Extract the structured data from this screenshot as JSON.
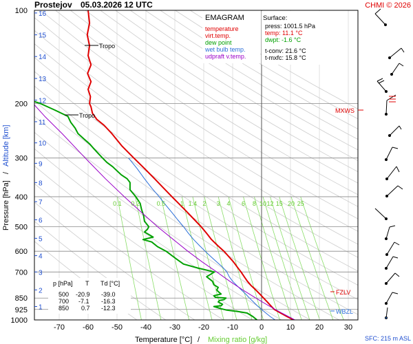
{
  "header": {
    "station": "Prostejov",
    "datetime": "05.03.2026 12 UTC",
    "copyright": "CHMI © 2026"
  },
  "legend": {
    "title": "EMAGRAM",
    "items": [
      {
        "label": "temperature",
        "color": "#e00000"
      },
      {
        "label": "virt.temp.",
        "color": "#e00000"
      },
      {
        "label": "dew point",
        "color": "#00a000"
      },
      {
        "label": "wet bulb temp.",
        "color": "#2a6ed8"
      },
      {
        "label": "udpraft v.temp.",
        "color": "#9a00c8"
      }
    ]
  },
  "surface": {
    "title": "Surface:",
    "press": "press: 1001.5 hPa",
    "temp": "temp: 11.1 °C",
    "dwpt": "dwpt: -1.6 °C",
    "tconv": "t-conv: 21.6 °C",
    "tmxfc": "t-mxfc: 15.8 °C"
  },
  "table": {
    "headers": [
      "p [hPa]",
      "T",
      "Td [°C]"
    ],
    "rows": [
      [
        "500",
        "-20.9",
        "-39.0"
      ],
      [
        "700",
        "-7.1",
        "-16.3"
      ],
      [
        "850",
        "0.7",
        "-12.3"
      ]
    ]
  },
  "labels": {
    "tropo": "Tropo",
    "mxws": "MXWS",
    "fzlv": "FZLV",
    "wbzl": "WBZL",
    "sfc": "SFC: 215 m ASL",
    "xlabel_temp": "Temperature [°C]",
    "xlabel_sep": "/",
    "xlabel_mix": "Mixing ratio [g/kg]",
    "ylabel_press": "Pressure [hPa]",
    "ylabel_sep": "/",
    "ylabel_alt": "Altitude [km]"
  },
  "colors": {
    "temperature": "#e00000",
    "dewpoint": "#00a000",
    "wetbulb": "#2a6ed8",
    "parcel": "#9a00c8",
    "mixing": "#88dd66",
    "dry_adiabat": "#cccccc",
    "altitude": "#1f4fd0",
    "mixlabel": "#66cc33"
  },
  "chart_data": {
    "type": "line",
    "ylim": [
      1000,
      100
    ],
    "xlim": [
      -80,
      30
    ],
    "pressure_ticks": [
      100,
      200,
      300,
      400,
      500,
      600,
      700,
      850,
      925,
      1000
    ],
    "temp_ticks": [
      -70,
      -60,
      -50,
      -40,
      -30,
      -20,
      -10,
      0,
      10,
      20,
      30
    ],
    "altitude_ticks": [
      {
        "km": "1",
        "p": 905
      },
      {
        "km": "2",
        "p": 800
      },
      {
        "km": "3",
        "p": 700
      },
      {
        "km": "4",
        "p": 620
      },
      {
        "km": "5",
        "p": 545
      },
      {
        "km": "6",
        "p": 475
      },
      {
        "km": "7",
        "p": 415
      },
      {
        "km": "8",
        "p": 360
      },
      {
        "km": "9",
        "p": 312
      },
      {
        "km": "10",
        "p": 268
      },
      {
        "km": "11",
        "p": 229
      },
      {
        "km": "12",
        "p": 195
      },
      {
        "km": "13",
        "p": 166
      },
      {
        "km": "14",
        "p": 141
      },
      {
        "km": "15",
        "p": 120
      },
      {
        "km": "16",
        "p": 102
      }
    ],
    "mixing_ratio_labels": [
      "0.1",
      "0.2",
      "0.5",
      "1",
      "1.4",
      "2",
      "3",
      "4",
      "6",
      "8",
      "10",
      "12",
      "15",
      "20",
      "25"
    ],
    "series": [
      {
        "name": "temperature",
        "points": [
          [
            1000,
            11.1
          ],
          [
            975,
            8.8
          ],
          [
            950,
            6.6
          ],
          [
            925,
            4.4
          ],
          [
            900,
            3.2
          ],
          [
            875,
            2.0
          ],
          [
            850,
            0.7
          ],
          [
            825,
            -0.6
          ],
          [
            800,
            -2.0
          ],
          [
            775,
            -3.6
          ],
          [
            750,
            -4.9
          ],
          [
            725,
            -6.0
          ],
          [
            700,
            -7.1
          ],
          [
            675,
            -8.4
          ],
          [
            650,
            -9.7
          ],
          [
            625,
            -11.3
          ],
          [
            600,
            -13.0
          ],
          [
            575,
            -15.2
          ],
          [
            550,
            -17.3
          ],
          [
            525,
            -19.0
          ],
          [
            500,
            -20.9
          ],
          [
            475,
            -23.2
          ],
          [
            450,
            -25.6
          ],
          [
            425,
            -28.2
          ],
          [
            400,
            -31.0
          ],
          [
            375,
            -33.9
          ],
          [
            350,
            -37.0
          ],
          [
            325,
            -40.4
          ],
          [
            300,
            -44.2
          ],
          [
            275,
            -48.2
          ],
          [
            250,
            -51.8
          ],
          [
            235,
            -54.5
          ],
          [
            225,
            -57.0
          ],
          [
            215,
            -58.5
          ],
          [
            205,
            -59.0
          ],
          [
            200,
            -59.5
          ],
          [
            190,
            -59.2
          ],
          [
            180,
            -60.0
          ],
          [
            170,
            -59.0
          ],
          [
            160,
            -60.2
          ],
          [
            150,
            -59.0
          ],
          [
            140,
            -60.0
          ],
          [
            130,
            -59.5
          ],
          [
            120,
            -60.3
          ],
          [
            110,
            -59.5
          ],
          [
            100,
            -60.0
          ]
        ]
      },
      {
        "name": "dew point",
        "points": [
          [
            1000,
            -1.6
          ],
          [
            975,
            -3.0
          ],
          [
            950,
            -5.0
          ],
          [
            940,
            -8.0
          ],
          [
            930,
            -12.0
          ],
          [
            920,
            -14.0
          ],
          [
            905,
            -16.5
          ],
          [
            900,
            -14.0
          ],
          [
            890,
            -13.5
          ],
          [
            875,
            -15.0
          ],
          [
            865,
            -14.5
          ],
          [
            860,
            -13.0
          ],
          [
            850,
            -12.3
          ],
          [
            845,
            -16.0
          ],
          [
            835,
            -16.5
          ],
          [
            825,
            -14.0
          ],
          [
            810,
            -15.0
          ],
          [
            800,
            -15.5
          ],
          [
            785,
            -15.0
          ],
          [
            770,
            -16.5
          ],
          [
            750,
            -17.0
          ],
          [
            725,
            -19.0
          ],
          [
            700,
            -16.3
          ],
          [
            680,
            -22.0
          ],
          [
            660,
            -27.0
          ],
          [
            640,
            -29.0
          ],
          [
            620,
            -31.0
          ],
          [
            600,
            -33.0
          ],
          [
            580,
            -36.0
          ],
          [
            560,
            -38.0
          ],
          [
            550,
            -41.0
          ],
          [
            540,
            -37.5
          ],
          [
            530,
            -39.0
          ],
          [
            520,
            -40.5
          ],
          [
            510,
            -39.5
          ],
          [
            500,
            -39.0
          ],
          [
            480,
            -40.5
          ],
          [
            460,
            -40.8
          ],
          [
            440,
            -41.5
          ],
          [
            420,
            -42.0
          ],
          [
            400,
            -43.5
          ],
          [
            380,
            -45.5
          ],
          [
            360,
            -45.5
          ],
          [
            350,
            -46.5
          ],
          [
            340,
            -48.5
          ],
          [
            330,
            -50.0
          ],
          [
            320,
            -51.5
          ],
          [
            310,
            -53.5
          ],
          [
            300,
            -55.0
          ],
          [
            290,
            -56.5
          ],
          [
            280,
            -58.0
          ],
          [
            270,
            -59.5
          ],
          [
            260,
            -61.5
          ],
          [
            250,
            -63.5
          ],
          [
            240,
            -64.5
          ],
          [
            230,
            -66.0
          ],
          [
            220,
            -67.0
          ],
          [
            210,
            -71.5
          ],
          [
            200,
            -76.5
          ],
          [
            195,
            -80.0
          ]
        ]
      },
      {
        "name": "wet bulb temp.",
        "points": [
          [
            1000,
            4.7
          ],
          [
            975,
            3.0
          ],
          [
            950,
            1.5
          ],
          [
            925,
            0.0
          ],
          [
            900,
            -1.5
          ],
          [
            875,
            -2.8
          ],
          [
            850,
            -4.2
          ],
          [
            825,
            -5.5
          ],
          [
            800,
            -7.0
          ],
          [
            775,
            -8.5
          ],
          [
            750,
            -10.0
          ],
          [
            725,
            -11.2
          ],
          [
            700,
            -12.0
          ],
          [
            675,
            -13.5
          ],
          [
            650,
            -15.5
          ],
          [
            625,
            -17.5
          ],
          [
            600,
            -19.5
          ],
          [
            575,
            -21.5
          ],
          [
            550,
            -23.5
          ],
          [
            525,
            -25.3
          ],
          [
            500,
            -27.0
          ],
          [
            475,
            -29.0
          ],
          [
            450,
            -31.0
          ],
          [
            425,
            -33.2
          ],
          [
            400,
            -35.4
          ],
          [
            375,
            -38.0
          ],
          [
            350,
            -40.5
          ],
          [
            325,
            -43.0
          ],
          [
            300,
            -46.0
          ]
        ]
      },
      {
        "name": "udpraft v.temp.",
        "points": [
          [
            1000,
            11.5
          ],
          [
            950,
            7.0
          ],
          [
            900,
            2.5
          ],
          [
            850,
            -2.0
          ],
          [
            800,
            -6.5
          ],
          [
            750,
            -11.0
          ],
          [
            700,
            -15.5
          ],
          [
            650,
            -20.5
          ],
          [
            600,
            -25.5
          ],
          [
            550,
            -30.5
          ],
          [
            500,
            -36.0
          ],
          [
            450,
            -41.5
          ],
          [
            400,
            -47.5
          ],
          [
            350,
            -54.0
          ],
          [
            300,
            -61.0
          ],
          [
            250,
            -69.0
          ],
          [
            220,
            -75.0
          ],
          [
            200,
            -79.0
          ]
        ]
      }
    ]
  }
}
